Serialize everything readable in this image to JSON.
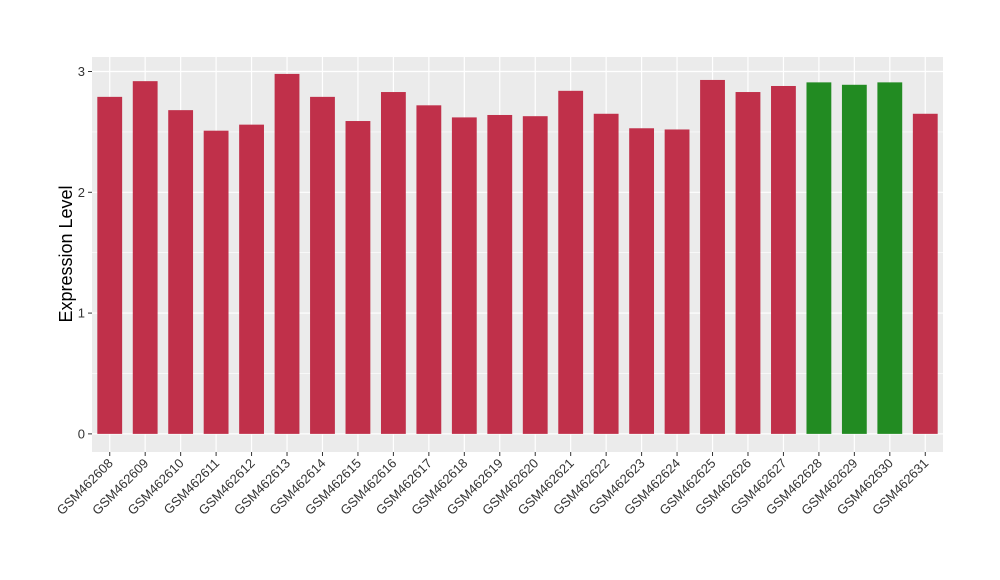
{
  "chart_data": {
    "type": "bar",
    "title": "",
    "xlabel": "",
    "ylabel": "Expression Level",
    "ylim": [
      -0.15,
      3.12
    ],
    "yticks": [
      0,
      1,
      2,
      3
    ],
    "ytick_labels": [
      "0",
      "1",
      "2",
      "3"
    ],
    "grid": true,
    "legend": "none",
    "categories": [
      "GSM462608",
      "GSM462609",
      "GSM462610",
      "GSM462611",
      "GSM462612",
      "GSM462613",
      "GSM462614",
      "GSM462615",
      "GSM462616",
      "GSM462617",
      "GSM462618",
      "GSM462619",
      "GSM462620",
      "GSM462621",
      "GSM462622",
      "GSM462623",
      "GSM462624",
      "GSM462625",
      "GSM462626",
      "GSM462627",
      "GSM462628",
      "GSM462629",
      "GSM462630",
      "GSM462631"
    ],
    "values": [
      2.79,
      2.92,
      2.68,
      2.51,
      2.56,
      2.98,
      2.79,
      2.59,
      2.83,
      2.72,
      2.62,
      2.64,
      2.63,
      2.84,
      2.65,
      2.53,
      2.52,
      2.93,
      2.83,
      2.88,
      2.91,
      2.89,
      2.91,
      2.65
    ],
    "bar_colors": [
      "#c0304a",
      "#c0304a",
      "#c0304a",
      "#c0304a",
      "#c0304a",
      "#c0304a",
      "#c0304a",
      "#c0304a",
      "#c0304a",
      "#c0304a",
      "#c0304a",
      "#c0304a",
      "#c0304a",
      "#c0304a",
      "#c0304a",
      "#c0304a",
      "#c0304a",
      "#c0304a",
      "#c0304a",
      "#c0304a",
      "#228b22",
      "#228b22",
      "#228b22",
      "#c0304a"
    ],
    "panel_background": "#ebebeb",
    "gridline_color": "#ffffff"
  }
}
